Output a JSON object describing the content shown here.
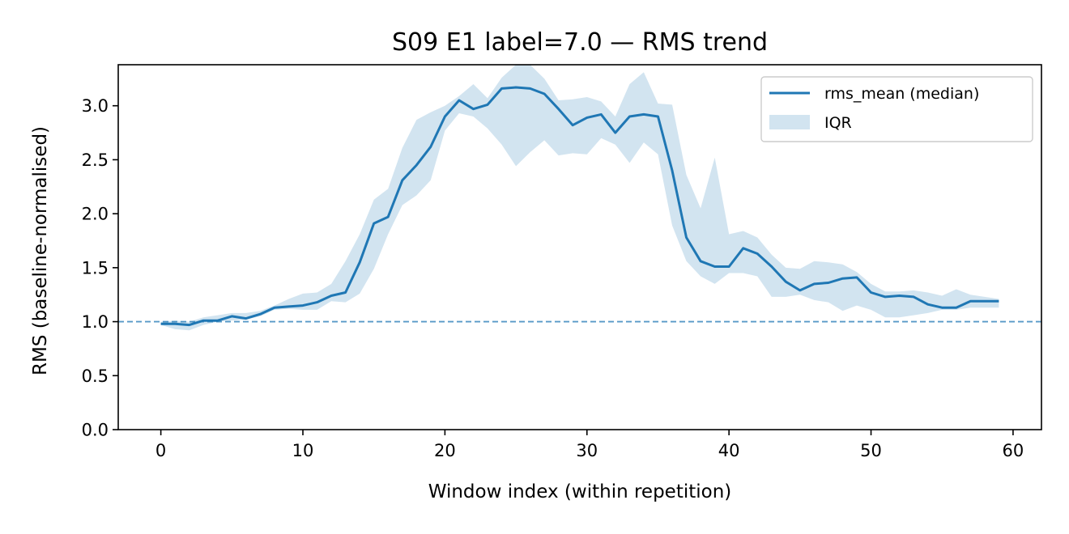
{
  "chart_data": {
    "type": "line",
    "title": "S09 E1 label=7.0 — RMS trend",
    "xlabel": "Window index (within repetition)",
    "ylabel": "RMS (baseline-normalised)",
    "xlim": [
      -3,
      62
    ],
    "ylim": [
      0,
      3.38
    ],
    "xticks": [
      0,
      10,
      20,
      30,
      40,
      50,
      60
    ],
    "yticks": [
      0.0,
      0.5,
      1.0,
      1.5,
      2.0,
      2.5,
      3.0
    ],
    "xtick_labels": [
      "0",
      "10",
      "20",
      "30",
      "40",
      "50",
      "60"
    ],
    "ytick_labels": [
      "0.0",
      "0.5",
      "1.0",
      "1.5",
      "2.0",
      "2.5",
      "3.0"
    ],
    "x": [
      0,
      1,
      2,
      3,
      4,
      5,
      6,
      7,
      8,
      9,
      10,
      11,
      12,
      13,
      14,
      15,
      16,
      17,
      18,
      19,
      20,
      21,
      22,
      23,
      24,
      25,
      26,
      27,
      28,
      29,
      30,
      31,
      32,
      33,
      34,
      35,
      36,
      37,
      38,
      39,
      40,
      41,
      42,
      43,
      44,
      45,
      46,
      47,
      48,
      49,
      50,
      51,
      52,
      53,
      54,
      55,
      56,
      57,
      58,
      59
    ],
    "series": [
      {
        "name": "rms_mean (median)",
        "color": "#1f77b4",
        "values": [
          0.98,
          0.98,
          0.97,
          1.01,
          1.01,
          1.05,
          1.03,
          1.07,
          1.13,
          1.14,
          1.15,
          1.18,
          1.24,
          1.27,
          1.55,
          1.91,
          1.97,
          2.31,
          2.45,
          2.62,
          2.9,
          3.05,
          2.97,
          3.01,
          3.16,
          3.17,
          3.16,
          3.11,
          2.97,
          2.82,
          2.89,
          2.92,
          2.75,
          2.9,
          2.92,
          2.9,
          2.4,
          1.78,
          1.56,
          1.51,
          1.51,
          1.68,
          1.63,
          1.51,
          1.37,
          1.29,
          1.35,
          1.36,
          1.4,
          1.41,
          1.27,
          1.23,
          1.24,
          1.23,
          1.16,
          1.13,
          1.13,
          1.19,
          1.19,
          1.19
        ]
      }
    ],
    "band": {
      "name": "IQR",
      "color": "#1f77b4",
      "opacity": 0.2,
      "lower": [
        0.97,
        0.93,
        0.92,
        0.97,
        1.0,
        1.01,
        1.02,
        1.05,
        1.11,
        1.12,
        1.11,
        1.11,
        1.19,
        1.18,
        1.26,
        1.49,
        1.81,
        2.08,
        2.17,
        2.31,
        2.77,
        2.93,
        2.9,
        2.79,
        2.64,
        2.44,
        2.57,
        2.68,
        2.54,
        2.56,
        2.55,
        2.7,
        2.64,
        2.47,
        2.66,
        2.55,
        1.89,
        1.56,
        1.42,
        1.35,
        1.45,
        1.45,
        1.42,
        1.23,
        1.23,
        1.25,
        1.2,
        1.18,
        1.1,
        1.15,
        1.11,
        1.04,
        1.04,
        1.06,
        1.08,
        1.11,
        1.11,
        1.13,
        1.13,
        1.13
      ],
      "upper": [
        1.0,
        1.01,
        1.0,
        1.04,
        1.06,
        1.08,
        1.08,
        1.1,
        1.15,
        1.21,
        1.26,
        1.27,
        1.35,
        1.56,
        1.81,
        2.13,
        2.23,
        2.61,
        2.87,
        2.94,
        3.0,
        3.09,
        3.2,
        3.07,
        3.26,
        3.38,
        3.38,
        3.25,
        3.05,
        3.06,
        3.08,
        3.04,
        2.9,
        3.2,
        3.31,
        3.02,
        3.01,
        2.36,
        2.05,
        2.52,
        1.81,
        1.84,
        1.78,
        1.62,
        1.5,
        1.49,
        1.56,
        1.55,
        1.53,
        1.46,
        1.35,
        1.28,
        1.28,
        1.29,
        1.27,
        1.24,
        1.3,
        1.25,
        1.23,
        1.21
      ]
    },
    "reference_line": {
      "y": 1.0,
      "color": "#1f77b4",
      "style": "dashed"
    },
    "grid": false,
    "legend_placement": "top-right",
    "legend": [
      "rms_mean (median)",
      "IQR"
    ]
  }
}
